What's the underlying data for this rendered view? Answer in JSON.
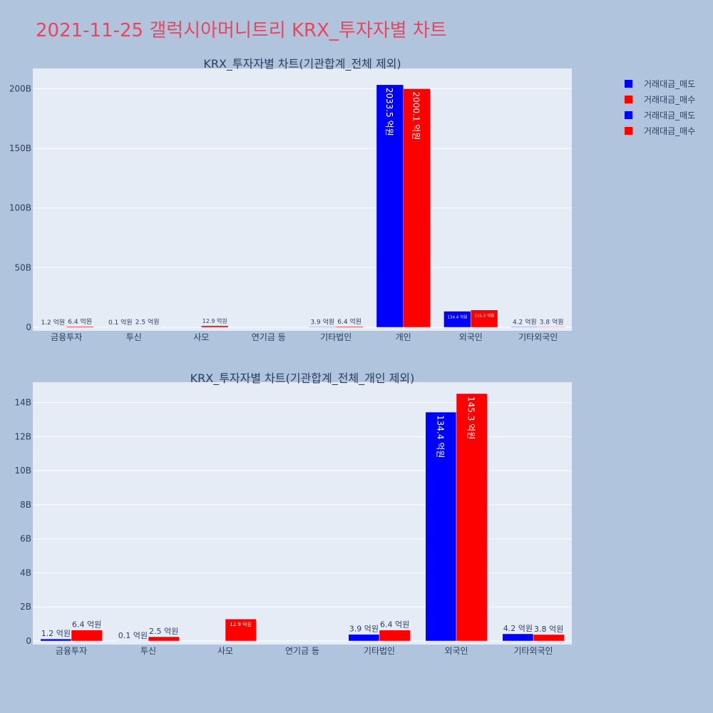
{
  "page_title": "2021-11-25 갤럭시아머니트리 KRX_투자자별 차트",
  "legend": [
    {
      "name": "거래대금_매도",
      "color": "#0000ff"
    },
    {
      "name": "거래대금_매수",
      "color": "#ff0000"
    },
    {
      "name": "거래대금_매도",
      "color": "#0000ff"
    },
    {
      "name": "거래대금_매수",
      "color": "#ff0000"
    }
  ],
  "chart_data": [
    {
      "type": "bar",
      "title": "KRX_투자자별 차트(기관합계_전체 제외)",
      "categories": [
        "금융투자",
        "투신",
        "사모",
        "연기금 등",
        "기타법인",
        "개인",
        "외국인",
        "기타외국인"
      ],
      "ylim": [
        0,
        217
      ],
      "yticks": [
        0,
        50,
        100,
        150,
        200
      ],
      "ytick_labels": [
        "0",
        "50B",
        "100B",
        "150B",
        "200B"
      ],
      "series": [
        {
          "name": "거래대금_매도",
          "color": "#0000ff",
          "values": [
            0.12,
            0.01,
            0,
            0,
            0.39,
            203.35,
            13.44,
            0.42
          ],
          "labels": [
            "1.2 억원",
            "0.1 억원",
            "",
            "",
            "3.9 억원",
            "2033.5 억원",
            "134.4 억원",
            "4.2 억원"
          ]
        },
        {
          "name": "거래대금_매수",
          "color": "#ff0000",
          "values": [
            0.64,
            0.25,
            1.29,
            0,
            0.64,
            200.01,
            14.53,
            0.38
          ],
          "labels": [
            "6.4 억원",
            "2.5 억원",
            "12.9 억원",
            "",
            "6.4 억원",
            "2000.1 억원",
            "145.3 억원",
            "3.8 억원"
          ]
        }
      ],
      "grid": true
    },
    {
      "type": "bar",
      "title": "KRX_투자자별 차트(기관합계_전체_개인 제외)",
      "categories": [
        "금융투자",
        "투신",
        "사모",
        "연기금 등",
        "기타법인",
        "외국인",
        "기타외국인"
      ],
      "ylim": [
        0,
        15.2
      ],
      "yticks": [
        0,
        2,
        4,
        6,
        8,
        10,
        12,
        14
      ],
      "ytick_labels": [
        "0",
        "2B",
        "4B",
        "6B",
        "8B",
        "10B",
        "12B",
        "14B"
      ],
      "series": [
        {
          "name": "거래대금_매도",
          "color": "#0000ff",
          "values": [
            0.12,
            0.01,
            0,
            0,
            0.39,
            13.44,
            0.42
          ],
          "labels": [
            "1.2 억원",
            "0.1 억원",
            "",
            "",
            "3.9 억원",
            "134.4 억원",
            "4.2 억원"
          ]
        },
        {
          "name": "거래대금_매수",
          "color": "#ff0000",
          "values": [
            0.64,
            0.25,
            1.29,
            0,
            0.64,
            14.53,
            0.38
          ],
          "labels": [
            "6.4 억원",
            "2.5 억원",
            "12.9 억원",
            "",
            "6.4 억원",
            "145.3 억원",
            "3.8 억원"
          ]
        }
      ],
      "grid": true
    }
  ]
}
